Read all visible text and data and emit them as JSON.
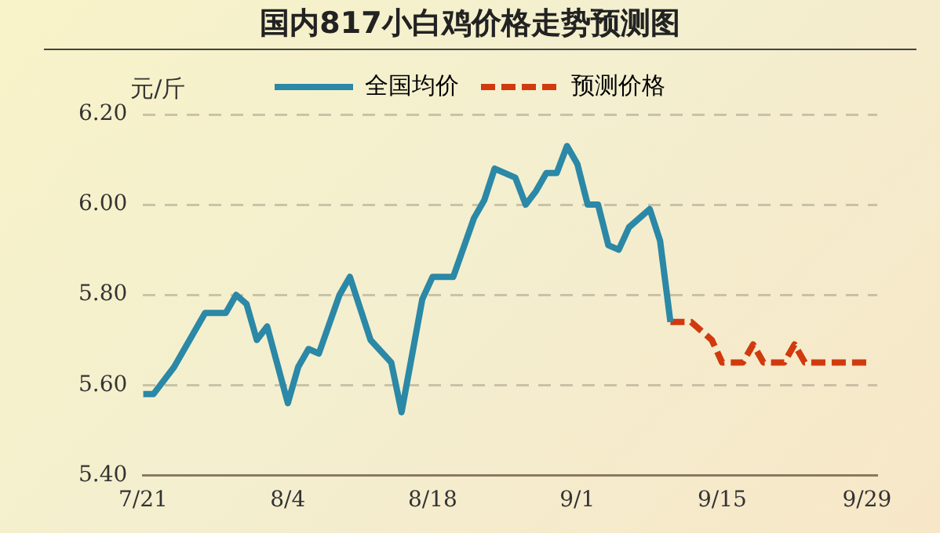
{
  "chart_data": {
    "type": "line",
    "title": "国内817小白鸡价格走势预测图",
    "ylabel": "元/斤",
    "series": [
      {
        "name": "全国均价",
        "color": "#2b88a6",
        "line_style": "solid",
        "x": [
          "--07-21",
          "--07-22",
          "--07-24",
          "--07-27",
          "--07-29",
          "--07-30",
          "--07-31",
          "--08-01",
          "--08-02",
          "--08-04",
          "--08-05",
          "--08-06",
          "--08-07",
          "--08-09",
          "--08-10",
          "--08-11",
          "--08-12",
          "--08-14",
          "--08-15",
          "--08-17",
          "--08-18",
          "--08-20",
          "--08-22",
          "--08-23",
          "--08-24",
          "--08-26",
          "--08-27",
          "--08-28",
          "--08-29",
          "--08-30",
          "--08-31",
          "--09-01",
          "--09-02",
          "--09-03",
          "--09-04",
          "--09-05",
          "--09-06",
          "--09-08",
          "--09-09",
          "--09-10"
        ],
        "values": [
          5.58,
          5.58,
          5.64,
          5.76,
          5.76,
          5.8,
          5.78,
          5.7,
          5.73,
          5.56,
          5.64,
          5.68,
          5.67,
          5.8,
          5.84,
          5.77,
          5.7,
          5.65,
          5.54,
          5.79,
          5.84,
          5.84,
          5.97,
          6.01,
          6.08,
          6.06,
          6.0,
          6.03,
          6.07,
          6.07,
          6.13,
          6.09,
          6.0,
          6.0,
          5.91,
          5.9,
          5.95,
          5.99,
          5.92,
          5.74
        ]
      },
      {
        "name": "预测价格",
        "color": "#d03a0e",
        "line_style": "dashed",
        "x": [
          "--09-10",
          "--09-12",
          "--09-13",
          "--09-14",
          "--09-15",
          "--09-17",
          "--09-18",
          "--09-19",
          "--09-21",
          "--09-22",
          "--09-23",
          "--09-25",
          "--09-29"
        ],
        "values": [
          5.74,
          5.74,
          5.72,
          5.7,
          5.65,
          5.65,
          5.69,
          5.65,
          5.65,
          5.69,
          5.65,
          5.65,
          5.65
        ]
      }
    ],
    "xlim": [
      "--07-21",
      "--09-30"
    ],
    "xticks": [
      {
        "value": "--07-21",
        "label": "7/21"
      },
      {
        "value": "--08-04",
        "label": "8/4"
      },
      {
        "value": "--08-18",
        "label": "8/18"
      },
      {
        "value": "--09-01",
        "label": "9/1"
      },
      {
        "value": "--09-15",
        "label": "9/15"
      },
      {
        "value": "--09-29",
        "label": "9/29"
      }
    ],
    "ylim": [
      5.4,
      6.2
    ],
    "yticks": [
      {
        "value": 5.4,
        "label": "5.40"
      },
      {
        "value": 5.6,
        "label": "5.60"
      },
      {
        "value": 5.8,
        "label": "5.80"
      },
      {
        "value": 6.0,
        "label": "6.00"
      },
      {
        "value": 6.2,
        "label": "6.20"
      }
    ],
    "grid": "y",
    "legend": "top",
    "marker": "none"
  }
}
